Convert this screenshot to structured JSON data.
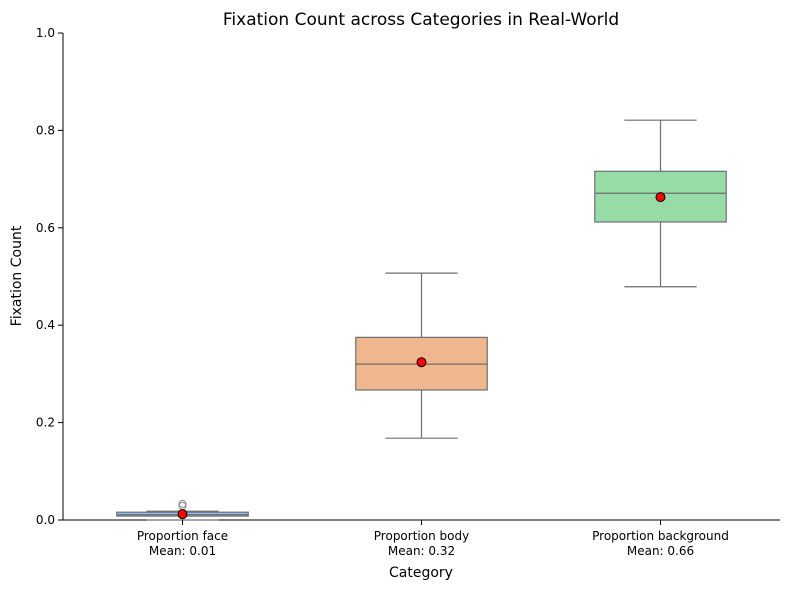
{
  "chart_data": {
    "type": "box",
    "title": "Fixation Count across Categories in Real-World",
    "xlabel": "Category",
    "ylabel": "Fixation Count",
    "ylim": [
      0,
      1.0
    ],
    "yticks": [
      0.0,
      0.2,
      0.4,
      0.6,
      0.8,
      1.0
    ],
    "ytick_labels": [
      "0.0",
      "0.2",
      "0.4",
      "0.6",
      "0.8",
      "1.0"
    ],
    "grid": false,
    "categories": [
      "Proportion face",
      "Proportion body",
      "Proportion background"
    ],
    "category_sublabels": [
      "Mean: 0.01",
      "Mean: 0.32",
      "Mean: 0.66"
    ],
    "boxes": [
      {
        "category": "Proportion face",
        "whisker_low": 0.0,
        "q1": 0.008,
        "median": 0.011,
        "q3": 0.016,
        "whisker_high": 0.018,
        "mean": 0.012,
        "outliers": [
          0.029,
          0.033
        ],
        "color": "#92c6ff"
      },
      {
        "category": "Proportion body",
        "whisker_low": 0.168,
        "q1": 0.267,
        "median": 0.32,
        "q3": 0.375,
        "whisker_high": 0.507,
        "mean": 0.324,
        "outliers": [],
        "color": "#f0b68e"
      },
      {
        "category": "Proportion background",
        "whisker_low": 0.479,
        "q1": 0.612,
        "median": 0.671,
        "q3": 0.716,
        "whisker_high": 0.821,
        "mean": 0.663,
        "outliers": [],
        "color": "#97dba7"
      }
    ],
    "mean_marker_color": "#ff0000",
    "line_color": "#6e6e6e"
  }
}
